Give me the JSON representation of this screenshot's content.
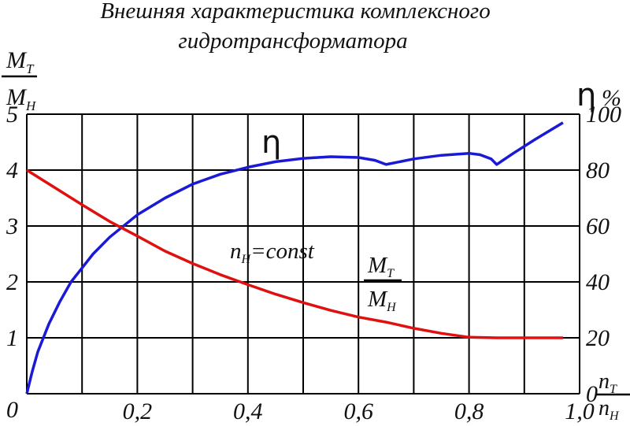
{
  "title": {
    "line1": "Внешняя характеристика комплексного",
    "line2": "гидротрансформатора"
  },
  "colors": {
    "efficiency": "#1a1ad6",
    "torque_ratio": "#e01010",
    "grid": "#000000",
    "background": "#ffffff"
  },
  "chart_data": {
    "type": "line",
    "title": "Внешняя характеристика комплексного гидротрансформатора",
    "grid": true,
    "x_axis": {
      "label_num": "n",
      "label_num_sub": "Т",
      "label_den": "n",
      "label_den_sub": "Н",
      "range": [
        0,
        1.0
      ],
      "ticks": [
        "0",
        "0,2",
        "0,4",
        "0,6",
        "0,8",
        "1,0"
      ]
    },
    "y_left": {
      "label_num": "M",
      "label_num_sub": "Т",
      "label_den": "M",
      "label_den_sub": "Н",
      "range": [
        0,
        5
      ],
      "ticks": [
        "0",
        "1",
        "2",
        "3",
        "4",
        "5"
      ]
    },
    "y_right": {
      "label_symbol": "η",
      "label_unit": "%",
      "range": [
        0,
        100
      ],
      "ticks": [
        "0",
        "20",
        "40",
        "60",
        "80",
        "100"
      ]
    },
    "series": [
      {
        "name": "η",
        "axis": "right",
        "color": "#1a1ad6",
        "x": [
          0,
          0.01,
          0.02,
          0.04,
          0.06,
          0.08,
          0.1,
          0.12,
          0.15,
          0.2,
          0.25,
          0.3,
          0.35,
          0.4,
          0.45,
          0.5,
          0.55,
          0.6,
          0.63,
          0.65,
          0.7,
          0.75,
          0.8,
          0.82,
          0.84,
          0.85,
          0.88,
          0.92,
          0.97
        ],
        "y": [
          0,
          8,
          15,
          25,
          33,
          40,
          45,
          50,
          56,
          64,
          70,
          75,
          78.5,
          81,
          83,
          84.2,
          84.8,
          84.5,
          83.5,
          82,
          84,
          85.3,
          86,
          85.5,
          84,
          82,
          86,
          91,
          97
        ]
      },
      {
        "name": "M_Т/M_Н",
        "axis": "left",
        "color": "#e01010",
        "x": [
          0,
          0.05,
          0.1,
          0.15,
          0.2,
          0.25,
          0.3,
          0.35,
          0.4,
          0.45,
          0.5,
          0.55,
          0.6,
          0.65,
          0.7,
          0.75,
          0.8,
          0.85,
          0.9,
          0.97
        ],
        "y": [
          4.0,
          3.69,
          3.38,
          3.08,
          2.82,
          2.55,
          2.33,
          2.13,
          1.95,
          1.78,
          1.63,
          1.49,
          1.37,
          1.28,
          1.17,
          1.08,
          1.01,
          1.0,
          1.0,
          1.0
        ]
      }
    ],
    "annotations": {
      "eta_label": "η",
      "const_label_prefix": "n",
      "const_label_sub": "Н",
      "const_label_suffix": "=const",
      "ratio_num": "M",
      "ratio_num_sub": "Т",
      "ratio_den": "M",
      "ratio_den_sub": "Н"
    }
  }
}
